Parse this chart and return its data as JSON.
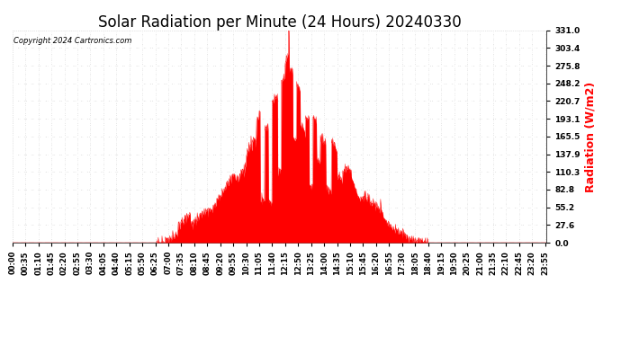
{
  "title": "Solar Radiation per Minute (24 Hours) 20240330",
  "ylabel": "Radiation (W/m2)",
  "ylabel_color": "red",
  "copyright_text": "Copyright 2024 Cartronics.com",
  "background_color": "#ffffff",
  "fill_color": "red",
  "line_color": "red",
  "grid_color": "#c8c8c8",
  "ymin": 0.0,
  "ymax": 331.0,
  "yticks": [
    0.0,
    27.6,
    55.2,
    82.8,
    110.3,
    137.9,
    165.5,
    193.1,
    220.7,
    248.2,
    275.8,
    303.4,
    331.0
  ],
  "total_minutes": 1440,
  "title_fontsize": 12,
  "tick_fontsize": 6.5,
  "ylabel_fontsize": 9
}
